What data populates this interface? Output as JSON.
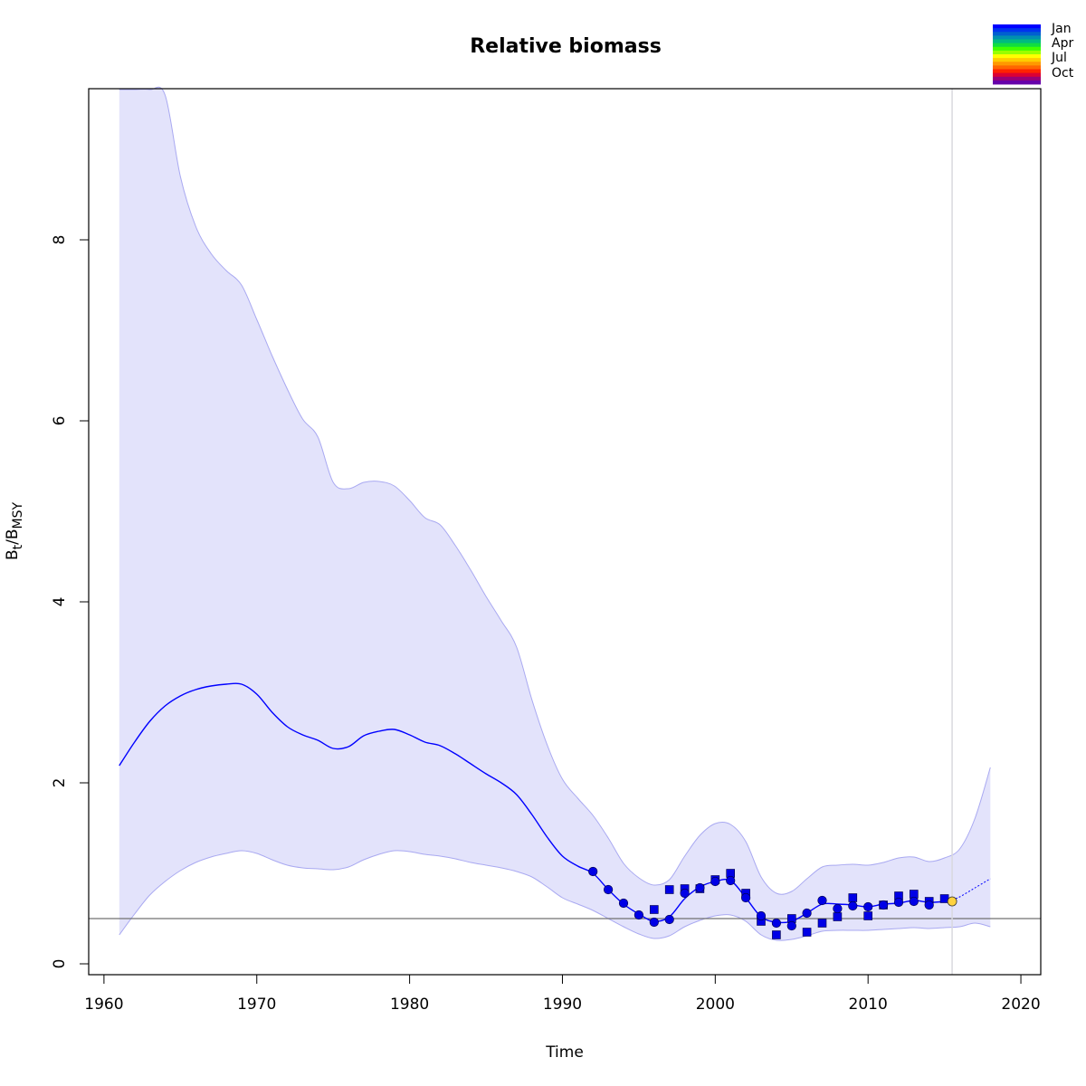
{
  "chart_data": {
    "type": "line",
    "title": "Relative biomass",
    "xlabel": "Time",
    "ylabel": "Bt/BMSY",
    "xlim": [
      1959,
      2021.3
    ],
    "ylim": [
      -0.12,
      9.67
    ],
    "x_ticks": [
      1960,
      1970,
      1980,
      1990,
      2000,
      2010,
      2020
    ],
    "y_ticks": [
      0,
      2,
      4,
      6,
      8
    ],
    "reference_line": 0.5,
    "vertical_line": 2015.5,
    "colors": {
      "estimate": "#0000ff",
      "band_fill": "#e3e3fb",
      "band_edge": "#a9a9f1",
      "reference": "#707070",
      "vertical": "#d9d9de",
      "points": "#0000e6",
      "highlight": "#ffd23f"
    },
    "estimate": {
      "x": [
        1961,
        1962,
        1963,
        1964,
        1965,
        1966,
        1967,
        1968,
        1969,
        1970,
        1971,
        1972,
        1973,
        1974,
        1975,
        1976,
        1977,
        1978,
        1979,
        1980,
        1981,
        1982,
        1983,
        1984,
        1985,
        1986,
        1987,
        1988,
        1989,
        1990,
        1991,
        1992,
        1993,
        1994,
        1995,
        1996,
        1997,
        1998,
        1999,
        2000,
        2001,
        2002,
        2003,
        2004,
        2005,
        2006,
        2007,
        2008,
        2009,
        2010,
        2011,
        2012,
        2013,
        2014,
        2015,
        2015.5
      ],
      "y": [
        2.19,
        2.45,
        2.68,
        2.85,
        2.96,
        3.03,
        3.07,
        3.09,
        3.09,
        2.98,
        2.78,
        2.62,
        2.53,
        2.47,
        2.38,
        2.4,
        2.52,
        2.57,
        2.59,
        2.53,
        2.45,
        2.41,
        2.32,
        2.21,
        2.1,
        2.0,
        1.87,
        1.65,
        1.4,
        1.19,
        1.08,
        1.0,
        0.82,
        0.66,
        0.55,
        0.47,
        0.52,
        0.72,
        0.85,
        0.91,
        0.92,
        0.73,
        0.52,
        0.46,
        0.47,
        0.56,
        0.66,
        0.66,
        0.65,
        0.63,
        0.66,
        0.67,
        0.7,
        0.68,
        0.69,
        0.71
      ]
    },
    "forecast": {
      "x": [
        2015.5,
        2016,
        2017,
        2018
      ],
      "y": [
        0.71,
        0.74,
        0.84,
        0.94
      ]
    },
    "band": {
      "x": [
        1961,
        1962,
        1963,
        1964,
        1965,
        1966,
        1967,
        1968,
        1969,
        1970,
        1971,
        1972,
        1973,
        1974,
        1975,
        1976,
        1977,
        1978,
        1979,
        1980,
        1981,
        1982,
        1983,
        1984,
        1985,
        1986,
        1987,
        1988,
        1989,
        1990,
        1991,
        1992,
        1993,
        1994,
        1995,
        1996,
        1997,
        1998,
        1999,
        2000,
        2001,
        2002,
        2003,
        2004,
        2005,
        2006,
        2007,
        2008,
        2009,
        2010,
        2011,
        2012,
        2013,
        2014,
        2015,
        2016,
        2017,
        2018
      ],
      "upper": [
        9.9,
        9.9,
        9.9,
        9.6,
        8.7,
        8.15,
        7.85,
        7.66,
        7.5,
        7.12,
        6.72,
        6.35,
        6.02,
        5.82,
        5.32,
        5.25,
        5.32,
        5.33,
        5.28,
        5.12,
        4.93,
        4.85,
        4.62,
        4.35,
        4.06,
        3.79,
        3.5,
        2.92,
        2.42,
        2.04,
        1.83,
        1.64,
        1.39,
        1.11,
        0.95,
        0.87,
        0.93,
        1.19,
        1.42,
        1.55,
        1.54,
        1.35,
        0.96,
        0.78,
        0.8,
        0.94,
        1.07,
        1.09,
        1.1,
        1.09,
        1.12,
        1.17,
        1.18,
        1.13,
        1.17,
        1.27,
        1.61,
        2.17
      ],
      "lower": [
        0.32,
        0.55,
        0.76,
        0.91,
        1.03,
        1.12,
        1.18,
        1.22,
        1.25,
        1.22,
        1.15,
        1.09,
        1.06,
        1.05,
        1.04,
        1.07,
        1.15,
        1.21,
        1.25,
        1.24,
        1.21,
        1.19,
        1.16,
        1.12,
        1.09,
        1.06,
        1.02,
        0.96,
        0.85,
        0.73,
        0.66,
        0.59,
        0.5,
        0.41,
        0.33,
        0.28,
        0.31,
        0.41,
        0.48,
        0.53,
        0.54,
        0.47,
        0.32,
        0.26,
        0.27,
        0.31,
        0.36,
        0.37,
        0.37,
        0.37,
        0.38,
        0.39,
        0.4,
        0.39,
        0.4,
        0.41,
        0.45,
        0.41
      ]
    },
    "circle_points": {
      "x": [
        1992,
        1993,
        1994,
        1995,
        1996,
        1997,
        1998,
        1999,
        2000,
        2001,
        2002,
        2003,
        2004,
        2005,
        2006,
        2007,
        2008,
        2009,
        2010,
        2011,
        2012,
        2013,
        2014
      ],
      "y": [
        1.02,
        0.82,
        0.67,
        0.54,
        0.46,
        0.49,
        0.78,
        0.84,
        0.91,
        0.92,
        0.73,
        0.53,
        0.45,
        0.42,
        0.56,
        0.7,
        0.61,
        0.64,
        0.63,
        0.65,
        0.68,
        0.69,
        0.65
      ]
    },
    "square_points": {
      "x": [
        1996,
        1997,
        1998,
        1999,
        2000,
        2001,
        2002,
        2003,
        2004,
        2005,
        2006,
        2007,
        2008,
        2009,
        2010,
        2011,
        2012,
        2013,
        2014,
        2015
      ],
      "y": [
        0.6,
        0.82,
        0.83,
        0.83,
        0.93,
        1.0,
        0.78,
        0.47,
        0.32,
        0.5,
        0.35,
        0.45,
        0.52,
        0.73,
        0.53,
        0.65,
        0.75,
        0.77,
        0.69,
        0.72
      ]
    },
    "highlight_point": {
      "x": 2015.5,
      "y": 0.69
    },
    "legend": {
      "labels": [
        "Jan",
        "Apr",
        "Jul",
        "Oct"
      ],
      "gradient": [
        "#0000ff",
        "#0033ee",
        "#0060d0",
        "#0090b0",
        "#00bb80",
        "#10dd40",
        "#40ff00",
        "#99ff00",
        "#ffff00",
        "#ffcc00",
        "#ff9900",
        "#ff6600",
        "#ff2200",
        "#dd0033",
        "#990077",
        "#6600aa"
      ]
    }
  }
}
